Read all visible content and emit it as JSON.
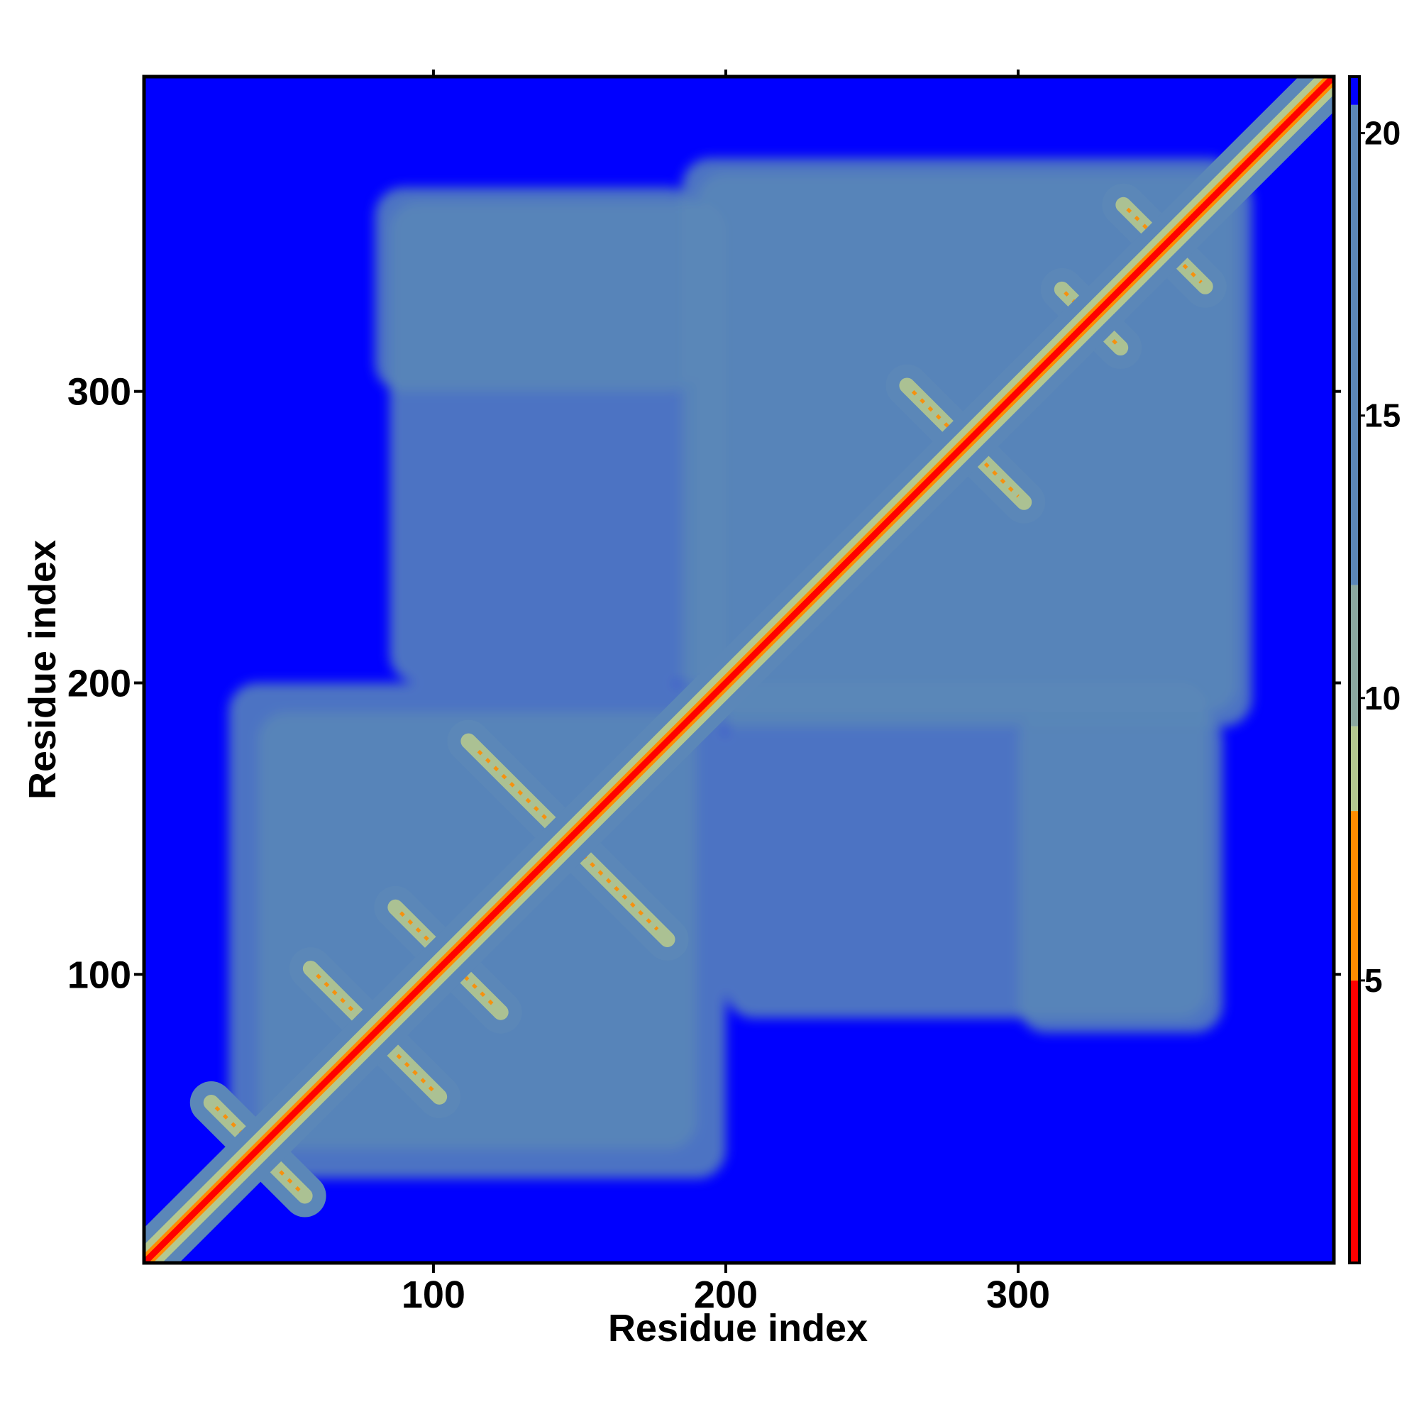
{
  "chart_data": {
    "type": "heatmap",
    "title": "",
    "xlabel": "Residue index",
    "ylabel": "Residue index",
    "xlim": [
      1,
      408
    ],
    "ylim": [
      1,
      408
    ],
    "x_ticks": [
      100,
      200,
      300
    ],
    "y_ticks": [
      100,
      200,
      300
    ],
    "x_tick_labels": [
      "100",
      "200",
      "300"
    ],
    "y_tick_labels": [
      "100",
      "200",
      "300"
    ],
    "colorbar": {
      "ticks": [
        5,
        10,
        15,
        20
      ],
      "tick_labels": [
        "5",
        "10",
        "15",
        "20"
      ],
      "range": [
        0,
        21
      ],
      "colors": [
        {
          "from": 0,
          "to": 5,
          "color": "#ff0000"
        },
        {
          "from": 5,
          "to": 8,
          "color": "#ff8c00"
        },
        {
          "from": 8,
          "to": 9.5,
          "color": "#b4c890"
        },
        {
          "from": 9.5,
          "to": 12,
          "color": "#8ba8a0"
        },
        {
          "from": 12,
          "to": 20.5,
          "color": "#5b87b8"
        },
        {
          "from": 20.5,
          "to": 21,
          "color": "#0000ff"
        }
      ]
    },
    "background_color": "#0000ff",
    "contact_color": "#5b87b8",
    "near_color": "#b4c890",
    "close_color": "#ff8c00",
    "diagonal_color": "#ff0000",
    "features": {
      "diagonal": {
        "from": 1,
        "to": 408
      },
      "cross_contacts": [
        {
          "center": [
            146,
            146
          ],
          "halfwidth": 34
        },
        {
          "center": [
            80,
            80
          ],
          "halfwidth": 22
        },
        {
          "center": [
            105,
            105
          ],
          "halfwidth": 18
        },
        {
          "center": [
            40,
            40
          ],
          "halfwidth": 16
        },
        {
          "center": [
            282,
            282
          ],
          "halfwidth": 20
        },
        {
          "center": [
            350,
            350
          ],
          "halfwidth": 14
        },
        {
          "center": [
            325,
            325
          ],
          "halfwidth": 10
        }
      ],
      "contact_regions": [
        {
          "x": [
            185,
            375
          ],
          "y": [
            190,
            380
          ]
        },
        {
          "x": [
            80,
            190
          ],
          "y": [
            300,
            370
          ]
        },
        {
          "x": [
            200,
            365
          ],
          "y": [
            85,
            200
          ]
        },
        {
          "x": [
            30,
            190
          ],
          "y": [
            40,
            200
          ]
        }
      ]
    }
  }
}
